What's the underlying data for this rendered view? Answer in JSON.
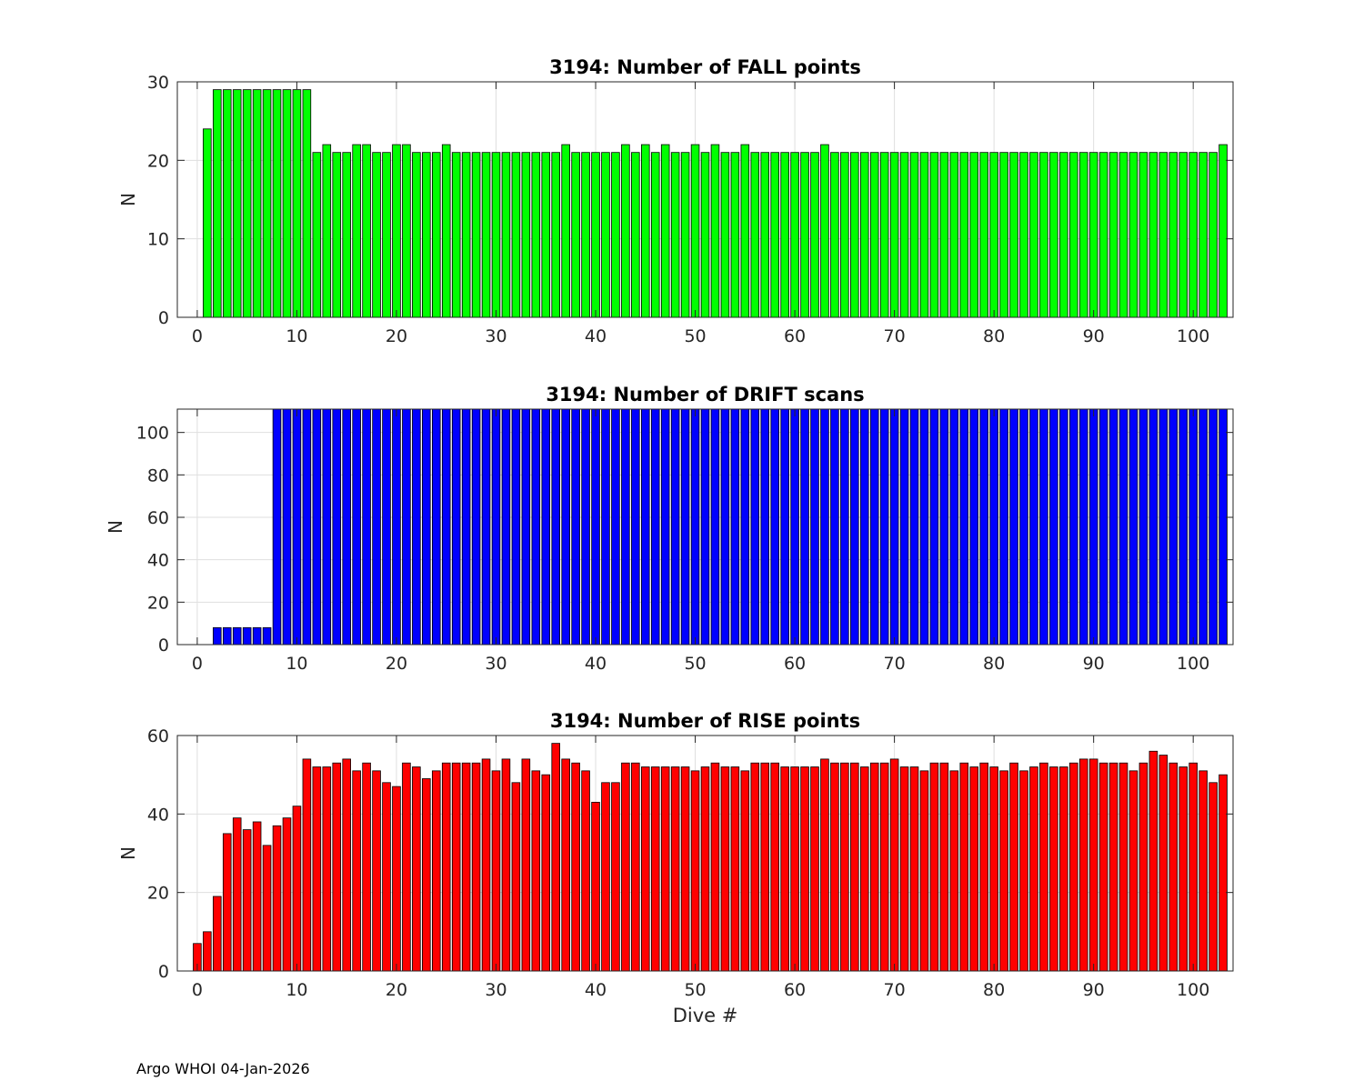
{
  "footer": "Argo WHOI 04-Jan-2026",
  "chart_data": [
    {
      "type": "bar",
      "title": "3194: Number of FALL points",
      "xlabel": "",
      "ylabel": "N",
      "color": "#00ff00",
      "xlim": [
        -2,
        104
      ],
      "ylim": [
        0,
        30
      ],
      "xticks": [
        0,
        10,
        20,
        30,
        40,
        50,
        60,
        70,
        80,
        90,
        100
      ],
      "yticks": [
        0,
        10,
        20,
        30
      ],
      "x": [
        0,
        1,
        2,
        3,
        4,
        5,
        6,
        7,
        8,
        9,
        10,
        11,
        12,
        13,
        14,
        15,
        16,
        17,
        18,
        19,
        20,
        21,
        22,
        23,
        24,
        25,
        26,
        27,
        28,
        29,
        30,
        31,
        32,
        33,
        34,
        35,
        36,
        37,
        38,
        39,
        40,
        41,
        42,
        43,
        44,
        45,
        46,
        47,
        48,
        49,
        50,
        51,
        52,
        53,
        54,
        55,
        56,
        57,
        58,
        59,
        60,
        61,
        62,
        63,
        64,
        65,
        66,
        67,
        68,
        69,
        70,
        71,
        72,
        73,
        74,
        75,
        76,
        77,
        78,
        79,
        80,
        81,
        82,
        83,
        84,
        85,
        86,
        87,
        88,
        89,
        90,
        91,
        92,
        93,
        94,
        95,
        96,
        97,
        98,
        99,
        100,
        101,
        102,
        103
      ],
      "values": [
        0,
        24,
        29,
        29,
        29,
        29,
        29,
        29,
        29,
        29,
        29,
        29,
        21,
        22,
        21,
        21,
        22,
        22,
        21,
        21,
        22,
        22,
        21,
        21,
        21,
        22,
        21,
        21,
        21,
        21,
        21,
        21,
        21,
        21,
        21,
        21,
        21,
        22,
        21,
        21,
        21,
        21,
        21,
        22,
        21,
        22,
        21,
        22,
        21,
        21,
        22,
        21,
        22,
        21,
        21,
        22,
        21,
        21,
        21,
        21,
        21,
        21,
        21,
        22,
        21,
        21,
        21,
        21,
        21,
        21,
        21,
        21,
        21,
        21,
        21,
        21,
        21,
        21,
        21,
        21,
        21,
        21,
        21,
        21,
        21,
        21,
        21,
        21,
        21,
        21,
        21,
        21,
        21,
        21,
        21,
        21,
        21,
        21,
        21,
        21,
        21,
        21,
        21,
        22
      ]
    },
    {
      "type": "bar",
      "title": "3194: Number of DRIFT scans",
      "xlabel": "",
      "ylabel": "N",
      "color": "#0000ff",
      "xlim": [
        -2,
        104
      ],
      "ylim": [
        0,
        111
      ],
      "xticks": [
        0,
        10,
        20,
        30,
        40,
        50,
        60,
        70,
        80,
        90,
        100
      ],
      "yticks": [
        0,
        20,
        40,
        60,
        80,
        100
      ],
      "x": [
        0,
        1,
        2,
        3,
        4,
        5,
        6,
        7,
        8,
        9,
        10,
        11,
        12,
        13,
        14,
        15,
        16,
        17,
        18,
        19,
        20,
        21,
        22,
        23,
        24,
        25,
        26,
        27,
        28,
        29,
        30,
        31,
        32,
        33,
        34,
        35,
        36,
        37,
        38,
        39,
        40,
        41,
        42,
        43,
        44,
        45,
        46,
        47,
        48,
        49,
        50,
        51,
        52,
        53,
        54,
        55,
        56,
        57,
        58,
        59,
        60,
        61,
        62,
        63,
        64,
        65,
        66,
        67,
        68,
        69,
        70,
        71,
        72,
        73,
        74,
        75,
        76,
        77,
        78,
        79,
        80,
        81,
        82,
        83,
        84,
        85,
        86,
        87,
        88,
        89,
        90,
        91,
        92,
        93,
        94,
        95,
        96,
        97,
        98,
        99,
        100,
        101,
        102,
        103
      ],
      "values": [
        0,
        0,
        8,
        8,
        8,
        8,
        8,
        8,
        111,
        111,
        111,
        111,
        111,
        111,
        111,
        111,
        111,
        111,
        111,
        111,
        111,
        111,
        111,
        111,
        111,
        111,
        111,
        111,
        111,
        111,
        111,
        111,
        111,
        111,
        111,
        111,
        111,
        111,
        111,
        111,
        111,
        111,
        111,
        111,
        111,
        111,
        111,
        111,
        111,
        111,
        111,
        111,
        111,
        111,
        111,
        111,
        111,
        111,
        111,
        111,
        111,
        111,
        111,
        111,
        111,
        111,
        111,
        111,
        111,
        111,
        111,
        111,
        111,
        111,
        111,
        111,
        111,
        111,
        111,
        111,
        111,
        111,
        111,
        111,
        111,
        111,
        111,
        111,
        111,
        111,
        111,
        111,
        111,
        111,
        111,
        111,
        111,
        111,
        111,
        111,
        111,
        111,
        111,
        111
      ]
    },
    {
      "type": "bar",
      "title": "3194: Number of RISE points",
      "xlabel": "Dive #",
      "ylabel": "N",
      "color": "#ff0000",
      "xlim": [
        -2,
        104
      ],
      "ylim": [
        0,
        60
      ],
      "xticks": [
        0,
        10,
        20,
        30,
        40,
        50,
        60,
        70,
        80,
        90,
        100
      ],
      "yticks": [
        0,
        20,
        40,
        60
      ],
      "x": [
        0,
        1,
        2,
        3,
        4,
        5,
        6,
        7,
        8,
        9,
        10,
        11,
        12,
        13,
        14,
        15,
        16,
        17,
        18,
        19,
        20,
        21,
        22,
        23,
        24,
        25,
        26,
        27,
        28,
        29,
        30,
        31,
        32,
        33,
        34,
        35,
        36,
        37,
        38,
        39,
        40,
        41,
        42,
        43,
        44,
        45,
        46,
        47,
        48,
        49,
        50,
        51,
        52,
        53,
        54,
        55,
        56,
        57,
        58,
        59,
        60,
        61,
        62,
        63,
        64,
        65,
        66,
        67,
        68,
        69,
        70,
        71,
        72,
        73,
        74,
        75,
        76,
        77,
        78,
        79,
        80,
        81,
        82,
        83,
        84,
        85,
        86,
        87,
        88,
        89,
        90,
        91,
        92,
        93,
        94,
        95,
        96,
        97,
        98,
        99,
        100,
        101,
        102,
        103
      ],
      "values": [
        7,
        10,
        19,
        35,
        39,
        36,
        38,
        32,
        37,
        39,
        42,
        54,
        52,
        52,
        53,
        54,
        51,
        53,
        51,
        48,
        47,
        53,
        52,
        49,
        51,
        53,
        53,
        53,
        53,
        54,
        51,
        54,
        48,
        54,
        51,
        50,
        58,
        54,
        53,
        51,
        43,
        48,
        48,
        53,
        53,
        52,
        52,
        52,
        52,
        52,
        51,
        52,
        53,
        52,
        52,
        51,
        53,
        53,
        53,
        52,
        52,
        52,
        52,
        54,
        53,
        53,
        53,
        52,
        53,
        53,
        54,
        52,
        52,
        51,
        53,
        53,
        51,
        53,
        52,
        53,
        52,
        51,
        53,
        51,
        52,
        53,
        52,
        52,
        53,
        54,
        54,
        53,
        53,
        53,
        51,
        53,
        56,
        55,
        53,
        52,
        53,
        51,
        48,
        50
      ]
    }
  ]
}
